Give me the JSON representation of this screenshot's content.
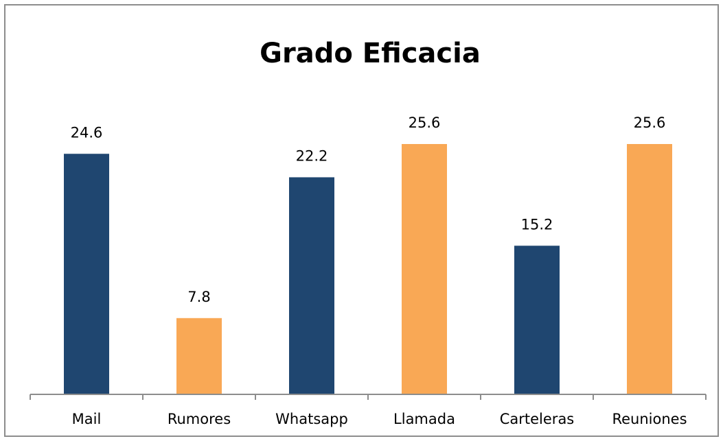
{
  "chart_data": {
    "type": "bar",
    "title": "Grado Eficacia",
    "categories": [
      "Mail",
      "Rumores",
      "Whatsapp",
      "Llamada",
      "Carteleras",
      "Reuniones"
    ],
    "values": [
      24.6,
      7.8,
      22.2,
      25.6,
      15.2,
      25.6
    ],
    "colors": [
      "#1f4670",
      "#f9a855",
      "#1f4670",
      "#f9a855",
      "#1f4670",
      "#f9a855"
    ]
  }
}
